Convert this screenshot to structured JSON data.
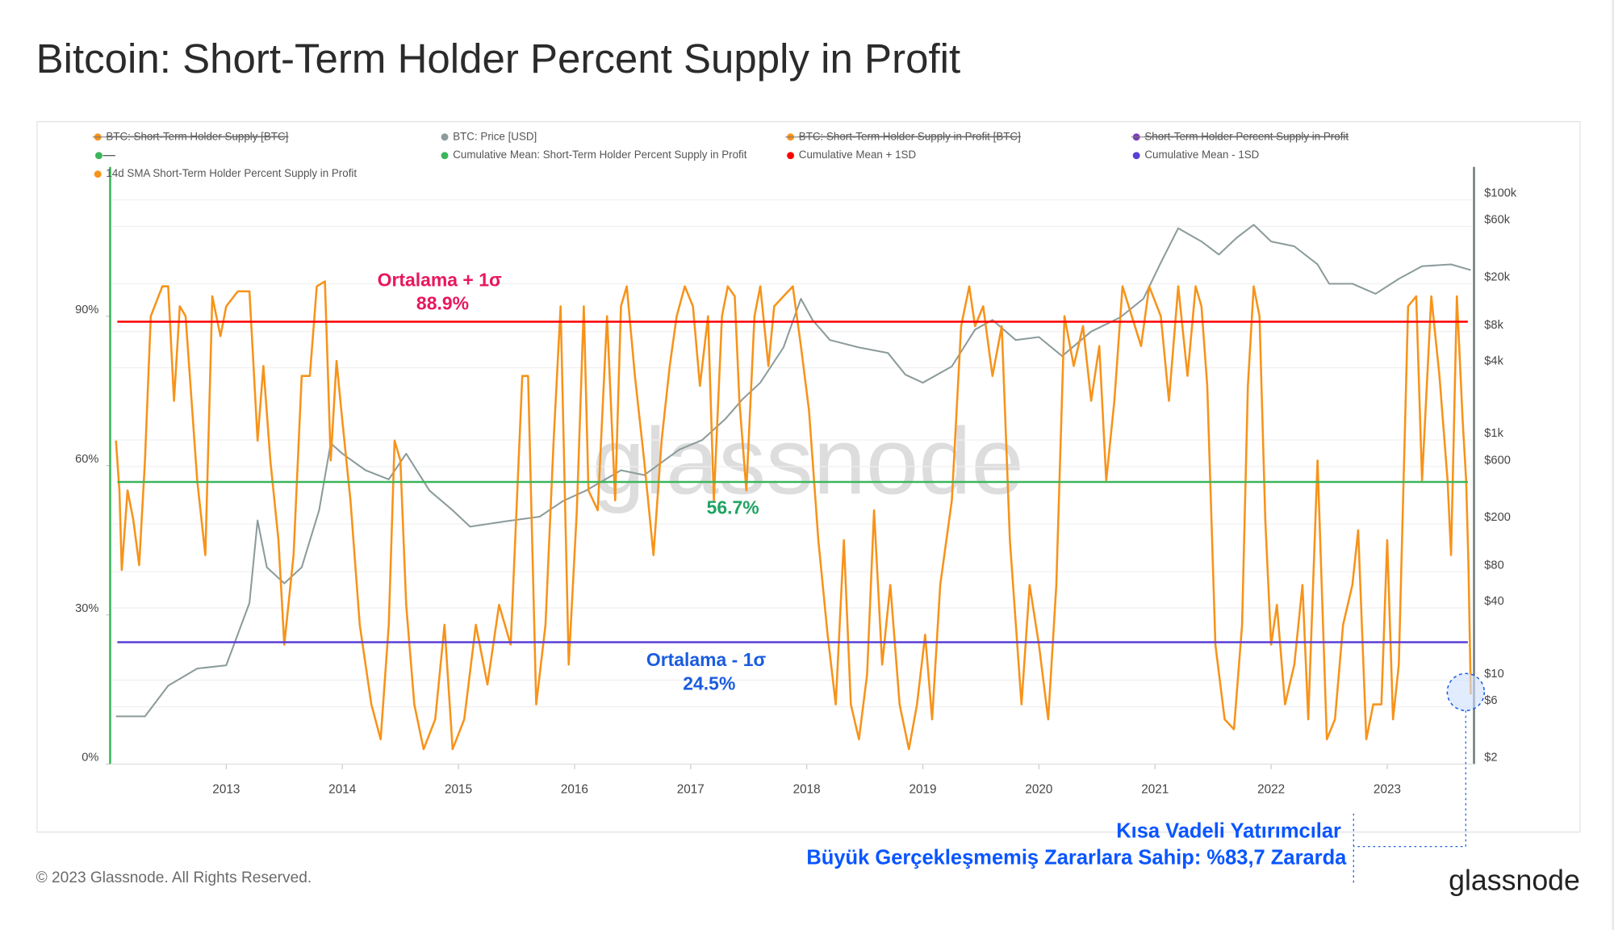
{
  "chart_data": {
    "type": "line",
    "title": "Bitcoin: Short-Term Holder Percent Supply in Profit",
    "xlim": [
      2012.0,
      2023.73
    ],
    "xticks": [
      2013,
      2014,
      2015,
      2016,
      2017,
      2018,
      2019,
      2020,
      2021,
      2022,
      2023
    ],
    "ylim": [
      0,
      120
    ],
    "yticks": [
      {
        "value": 0,
        "label": "0%"
      },
      {
        "value": 30,
        "label": "30%"
      },
      {
        "value": 60,
        "label": "60%"
      },
      {
        "value": 90,
        "label": "90%"
      }
    ],
    "y2lim": [
      2,
      188000
    ],
    "y2log": true,
    "y2ticks": [
      {
        "value": 2,
        "label": "$2"
      },
      {
        "value": 6,
        "label": "$6"
      },
      {
        "value": 10,
        "label": "$10"
      },
      {
        "value": 40,
        "label": "$40"
      },
      {
        "value": 80,
        "label": "$80"
      },
      {
        "value": 200,
        "label": "$200"
      },
      {
        "value": 600,
        "label": "$600"
      },
      {
        "value": 1000,
        "label": "$1k"
      },
      {
        "value": 4000,
        "label": "$4k"
      },
      {
        "value": 8000,
        "label": "$8k"
      },
      {
        "value": 20000,
        "label": "$20k"
      },
      {
        "value": 60000,
        "label": "$60k"
      },
      {
        "value": 100000,
        "label": "$100k"
      }
    ],
    "grid": true,
    "series": [
      {
        "name": "14d SMA Short-Term Holder Percent Supply in Profit",
        "color": "#f7931a",
        "axis": "y",
        "x": [
          2012.05,
          2012.08,
          2012.1,
          2012.15,
          2012.2,
          2012.25,
          2012.3,
          2012.35,
          2012.4,
          2012.45,
          2012.5,
          2012.55,
          2012.6,
          2012.65,
          2012.75,
          2012.82,
          2012.88,
          2012.95,
          2013.0,
          2013.1,
          2013.2,
          2013.27,
          2013.32,
          2013.38,
          2013.45,
          2013.5,
          2013.58,
          2013.65,
          2013.72,
          2013.78,
          2013.85,
          2013.9,
          2013.95,
          2014.0,
          2014.07,
          2014.15,
          2014.25,
          2014.33,
          2014.4,
          2014.45,
          2014.5,
          2014.55,
          2014.62,
          2014.7,
          2014.8,
          2014.88,
          2014.95,
          2015.05,
          2015.15,
          2015.25,
          2015.35,
          2015.45,
          2015.55,
          2015.6,
          2015.67,
          2015.75,
          2015.82,
          2015.88,
          2015.95,
          2016.02,
          2016.08,
          2016.12,
          2016.2,
          2016.28,
          2016.35,
          2016.4,
          2016.45,
          2016.52,
          2016.6,
          2016.68,
          2016.75,
          2016.82,
          2016.88,
          2016.95,
          2017.02,
          2017.08,
          2017.15,
          2017.2,
          2017.27,
          2017.32,
          2017.38,
          2017.42,
          2017.48,
          2017.55,
          2017.6,
          2017.67,
          2017.72,
          2017.8,
          2017.88,
          2017.95,
          2018.02,
          2018.1,
          2018.18,
          2018.25,
          2018.32,
          2018.38,
          2018.45,
          2018.52,
          2018.58,
          2018.65,
          2018.72,
          2018.8,
          2018.88,
          2018.95,
          2019.02,
          2019.08,
          2019.15,
          2019.25,
          2019.33,
          2019.4,
          2019.45,
          2019.52,
          2019.6,
          2019.68,
          2019.75,
          2019.85,
          2019.92,
          2020.0,
          2020.08,
          2020.15,
          2020.22,
          2020.3,
          2020.38,
          2020.45,
          2020.52,
          2020.58,
          2020.65,
          2020.72,
          2020.8,
          2020.88,
          2020.95,
          2021.05,
          2021.12,
          2021.2,
          2021.28,
          2021.35,
          2021.4,
          2021.45,
          2021.52,
          2021.6,
          2021.68,
          2021.75,
          2021.8,
          2021.85,
          2021.9,
          2021.95,
          2022.0,
          2022.05,
          2022.12,
          2022.2,
          2022.27,
          2022.32,
          2022.4,
          2022.48,
          2022.55,
          2022.62,
          2022.7,
          2022.75,
          2022.82,
          2022.88,
          2022.95,
          2023.0,
          2023.05,
          2023.1,
          2023.18,
          2023.25,
          2023.3,
          2023.38,
          2023.45,
          2023.52,
          2023.55,
          2023.6,
          2023.65,
          2023.68,
          2023.7,
          2023.72
        ],
        "values": [
          65,
          55,
          39,
          55,
          49,
          40,
          61,
          90,
          93,
          96,
          96,
          73,
          92,
          90,
          57,
          42,
          94,
          86,
          92,
          95,
          95,
          65,
          80,
          61,
          45,
          24,
          42,
          78,
          78,
          96,
          97,
          61,
          81,
          69,
          53,
          28,
          12,
          5,
          28,
          65,
          61,
          32,
          12,
          3,
          9,
          28,
          3,
          9,
          28,
          16,
          32,
          24,
          78,
          78,
          12,
          28,
          65,
          92,
          20,
          51,
          92,
          55,
          51,
          90,
          53,
          92,
          96,
          78,
          61,
          42,
          65,
          80,
          90,
          96,
          92,
          76,
          90,
          53,
          90,
          96,
          94,
          73,
          55,
          90,
          96,
          80,
          92,
          94,
          96,
          84,
          71,
          45,
          26,
          12,
          45,
          12,
          5,
          18,
          51,
          20,
          36,
          12,
          3,
          12,
          26,
          9,
          36,
          53,
          88,
          96,
          88,
          92,
          78,
          88,
          45,
          12,
          36,
          24,
          9,
          36,
          90,
          80,
          88,
          73,
          84,
          57,
          73,
          96,
          90,
          84,
          96,
          90,
          73,
          96,
          78,
          96,
          92,
          76,
          24,
          9,
          7,
          28,
          76,
          96,
          90,
          49,
          24,
          32,
          12,
          20,
          36,
          9,
          61,
          5,
          9,
          28,
          36,
          47,
          5,
          12,
          12,
          45,
          9,
          20,
          92,
          94,
          57,
          94,
          78,
          57,
          42,
          94,
          69,
          57,
          40,
          14
        ]
      },
      {
        "name": "BTC: Price [USD]",
        "color": "#8c9b9b",
        "axis": "y2",
        "x": [
          2012.05,
          2012.3,
          2012.5,
          2012.75,
          2013.0,
          2013.2,
          2013.27,
          2013.35,
          2013.5,
          2013.65,
          2013.8,
          2013.9,
          2014.0,
          2014.2,
          2014.4,
          2014.55,
          2014.75,
          2014.95,
          2015.1,
          2015.4,
          2015.7,
          2015.9,
          2016.1,
          2016.4,
          2016.6,
          2016.9,
          2017.1,
          2017.3,
          2017.45,
          2017.6,
          2017.8,
          2017.95,
          2018.05,
          2018.2,
          2018.45,
          2018.7,
          2018.85,
          2019.0,
          2019.25,
          2019.45,
          2019.6,
          2019.8,
          2020.0,
          2020.2,
          2020.45,
          2020.7,
          2020.9,
          2021.05,
          2021.2,
          2021.4,
          2021.55,
          2021.7,
          2021.85,
          2022.0,
          2022.2,
          2022.4,
          2022.5,
          2022.7,
          2022.9,
          2023.1,
          2023.3,
          2023.55,
          2023.72
        ],
        "values": [
          5,
          5,
          9,
          12.5,
          13.3,
          44,
          214,
          87,
          64,
          87,
          260,
          940,
          770,
          560,
          470,
          770,
          380,
          260,
          190,
          210,
          230,
          310,
          380,
          560,
          510,
          830,
          1000,
          1500,
          2200,
          3000,
          5900,
          15000,
          10000,
          6800,
          5900,
          5300,
          3500,
          3000,
          4100,
          8300,
          10000,
          6800,
          7200,
          5000,
          8000,
          10500,
          15000,
          30000,
          58000,
          45000,
          35000,
          48000,
          62000,
          45000,
          41000,
          29000,
          20000,
          20000,
          16500,
          22000,
          28000,
          29000,
          26000
        ]
      }
    ],
    "reference_lines": [
      {
        "name": "Cumulative Mean: Short-Term Holder Percent Supply in Profit",
        "value": 56.7,
        "color": "#3cb55a",
        "label_color": "#1fa463",
        "value_label": "56.7%"
      },
      {
        "name": "Cumulative Mean + 1SD",
        "value": 88.9,
        "color": "#ff0000",
        "label_color": "#e8175d",
        "label": "Ortalama + 1σ",
        "value_label": "88.9%"
      },
      {
        "name": "Cumulative Mean - 1SD",
        "value": 24.5,
        "color": "#5a3fd6",
        "label_color": "#1a5ce0",
        "label": "Ortalama - 1σ",
        "value_label": "24.5%"
      }
    ],
    "hidden_series": [
      {
        "name": "BTC: Short-Term Holder Supply [BTC]",
        "color": "#f7931a"
      },
      {
        "name": "BTC: Short-Term Holder Supply in Profit [BTC]",
        "color": "#f7931a"
      },
      {
        "name": "Short-Term Holder Percent Supply in Profit",
        "color": "#7a3fb5"
      }
    ],
    "annotations": [
      "Kısa Vadeli Yatırımcılar",
      "Büyük Gerçekleşmemiş Zararlara Sahip: %83,7 Zararda"
    ],
    "watermark": "glassnode"
  },
  "footer": "© 2023 Glassnode. All Rights Reserved.",
  "brand": "glassnode"
}
